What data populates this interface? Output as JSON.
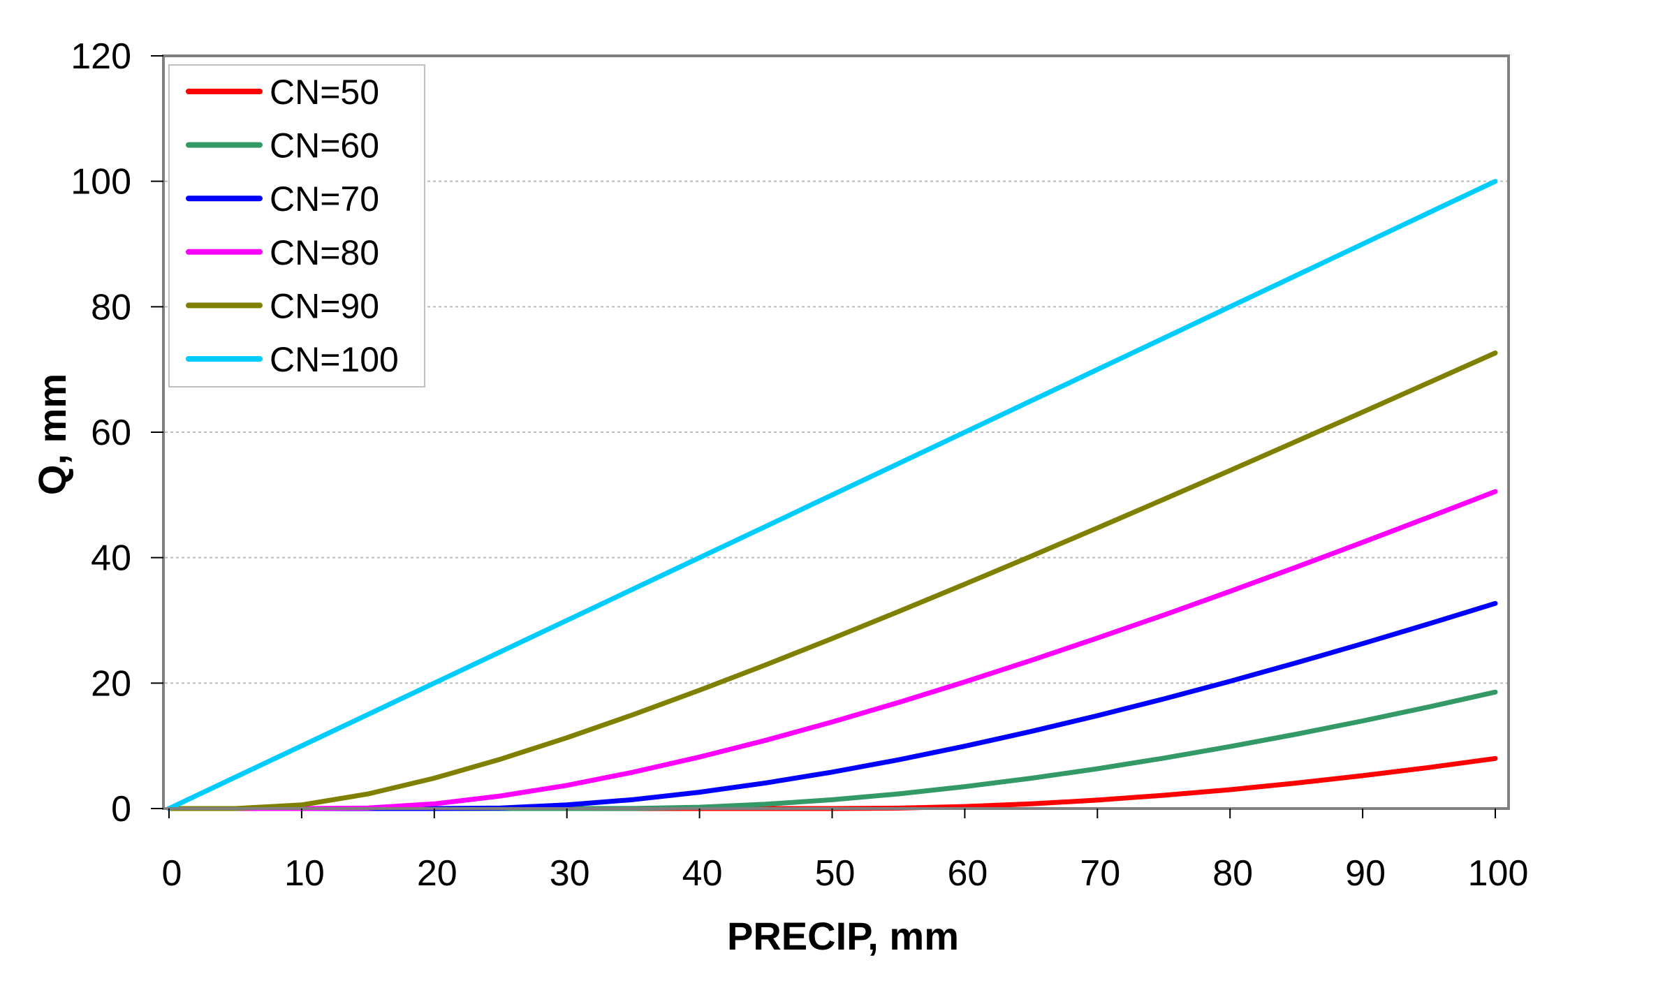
{
  "chart_data": {
    "type": "line",
    "title": "",
    "xlabel": "PRECIP, mm",
    "ylabel": "Q, mm",
    "xlim": [
      0,
      100
    ],
    "ylim": [
      0,
      120
    ],
    "xticks": [
      "0",
      "10",
      "20",
      "30",
      "40",
      "50",
      "60",
      "70",
      "80",
      "90",
      "100"
    ],
    "yticks": [
      "0",
      "20",
      "40",
      "60",
      "80",
      "100",
      "120"
    ],
    "grid": "horizontal dotted",
    "legend_position": "top-left",
    "x": [
      0,
      5,
      10,
      15,
      20,
      25,
      30,
      35,
      40,
      45,
      50,
      55,
      60,
      65,
      70,
      75,
      80,
      85,
      90,
      95,
      100
    ],
    "series": [
      {
        "name": "CN=50",
        "color": "#ff0000",
        "values": [
          0,
          0,
          0,
          0,
          0,
          0,
          0,
          0,
          0,
          0,
          0,
          0.07,
          0.32,
          0.75,
          1.35,
          2.11,
          3.01,
          4.06,
          5.24,
          6.55,
          7.98
        ]
      },
      {
        "name": "CN=60",
        "color": "#339966",
        "values": [
          0,
          0,
          0,
          0,
          0,
          0,
          0,
          0.01,
          0.21,
          0.69,
          1.4,
          2.34,
          3.49,
          4.83,
          6.35,
          8.04,
          9.88,
          11.86,
          13.97,
          16.21,
          18.57
        ]
      },
      {
        "name": "CN=70",
        "color": "#0000ff",
        "values": [
          0,
          0,
          0,
          0,
          0,
          0.09,
          0.58,
          1.43,
          2.61,
          4.09,
          5.81,
          7.77,
          9.94,
          12.29,
          14.81,
          17.48,
          20.29,
          23.23,
          26.29,
          29.45,
          32.71
        ]
      },
      {
        "name": "CN=80",
        "color": "#ff00ff",
        "values": [
          0,
          0,
          0,
          0.08,
          0.75,
          2.0,
          3.7,
          5.8,
          8.21,
          10.89,
          13.8,
          16.91,
          20.19,
          23.62,
          27.18,
          30.85,
          34.63,
          38.49,
          42.44,
          46.46,
          50.54
        ]
      },
      {
        "name": "CN=90",
        "color": "#808000",
        "values": [
          0,
          0,
          0.58,
          2.33,
          4.84,
          7.88,
          11.29,
          14.97,
          18.87,
          22.92,
          27.11,
          31.4,
          35.78,
          40.23,
          44.74,
          49.3,
          53.9,
          58.54,
          63.21,
          67.91,
          72.64
        ]
      },
      {
        "name": "CN=100",
        "color": "#00ccff",
        "values": [
          0,
          5,
          10,
          15,
          20,
          25,
          30,
          35,
          40,
          45,
          50,
          55,
          60,
          65,
          70,
          75,
          80,
          85,
          90,
          95,
          100
        ]
      }
    ]
  }
}
